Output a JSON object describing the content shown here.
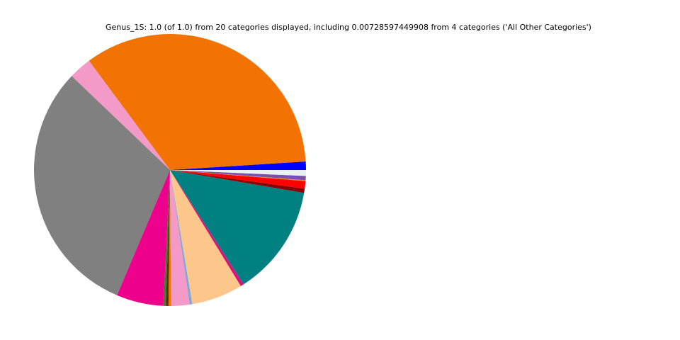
{
  "chart_data": {
    "type": "pie",
    "title": "Genus_1S: 1.0 (of 1.0) from 20 categories displayed, including 0.00728597449908 from 4 categories ('All Other Categories')",
    "values": [
      0.01,
      0.342,
      0.027,
      0.308,
      0.056,
      0.003,
      0.003,
      0.003,
      0.022,
      0.003,
      0.061,
      0.004,
      0.132,
      0.005,
      0.009,
      0.001,
      0.005,
      0.007
    ],
    "colors": [
      "#0000ff",
      "#f27304",
      "#f49ac8",
      "#808080",
      "#ec008c",
      "#3a7d22",
      "#5a2d0c",
      "#f27304",
      "#f49ac8",
      "#7fa6d8",
      "#fdc68a",
      "#d4147c",
      "#008080",
      "#8b0000",
      "#ff0000",
      "#f7941d",
      "#7a4fb0",
      "#e8f0f0"
    ]
  }
}
